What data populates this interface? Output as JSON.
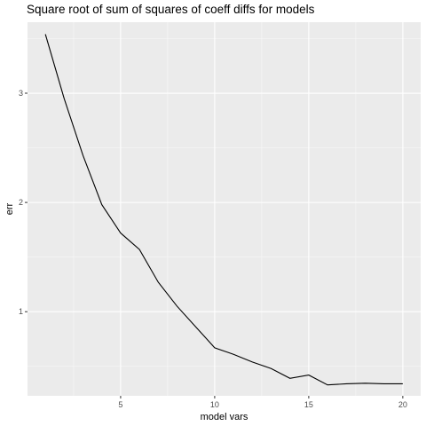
{
  "chart_data": {
    "type": "line",
    "title": "Square root of sum of squares of coeff diffs for models",
    "xlabel": "model vars",
    "ylabel": "err",
    "x": [
      1,
      2,
      3,
      4,
      5,
      6,
      7,
      8,
      9,
      10,
      11,
      12,
      13,
      14,
      15,
      16,
      17,
      18,
      19,
      20
    ],
    "series": [
      {
        "values": [
          3.54,
          2.95,
          2.43,
          1.98,
          1.72,
          1.57,
          1.27,
          1.05,
          0.86,
          0.67,
          0.61,
          0.54,
          0.48,
          0.39,
          0.42,
          0.33,
          0.34,
          0.345,
          0.34,
          0.34
        ]
      }
    ],
    "xlim": [
      0.05,
      20.95
    ],
    "ylim": [
      0.23,
      3.65
    ],
    "x_ticks": [
      5,
      10,
      15,
      20
    ],
    "y_ticks": [
      1,
      2,
      3
    ],
    "grid": true,
    "legend": "none",
    "colors": {
      "panel": "#ebebeb",
      "grid_major": "#ffffff",
      "line": "#000000",
      "tick_text": "#4d4d4d"
    }
  }
}
